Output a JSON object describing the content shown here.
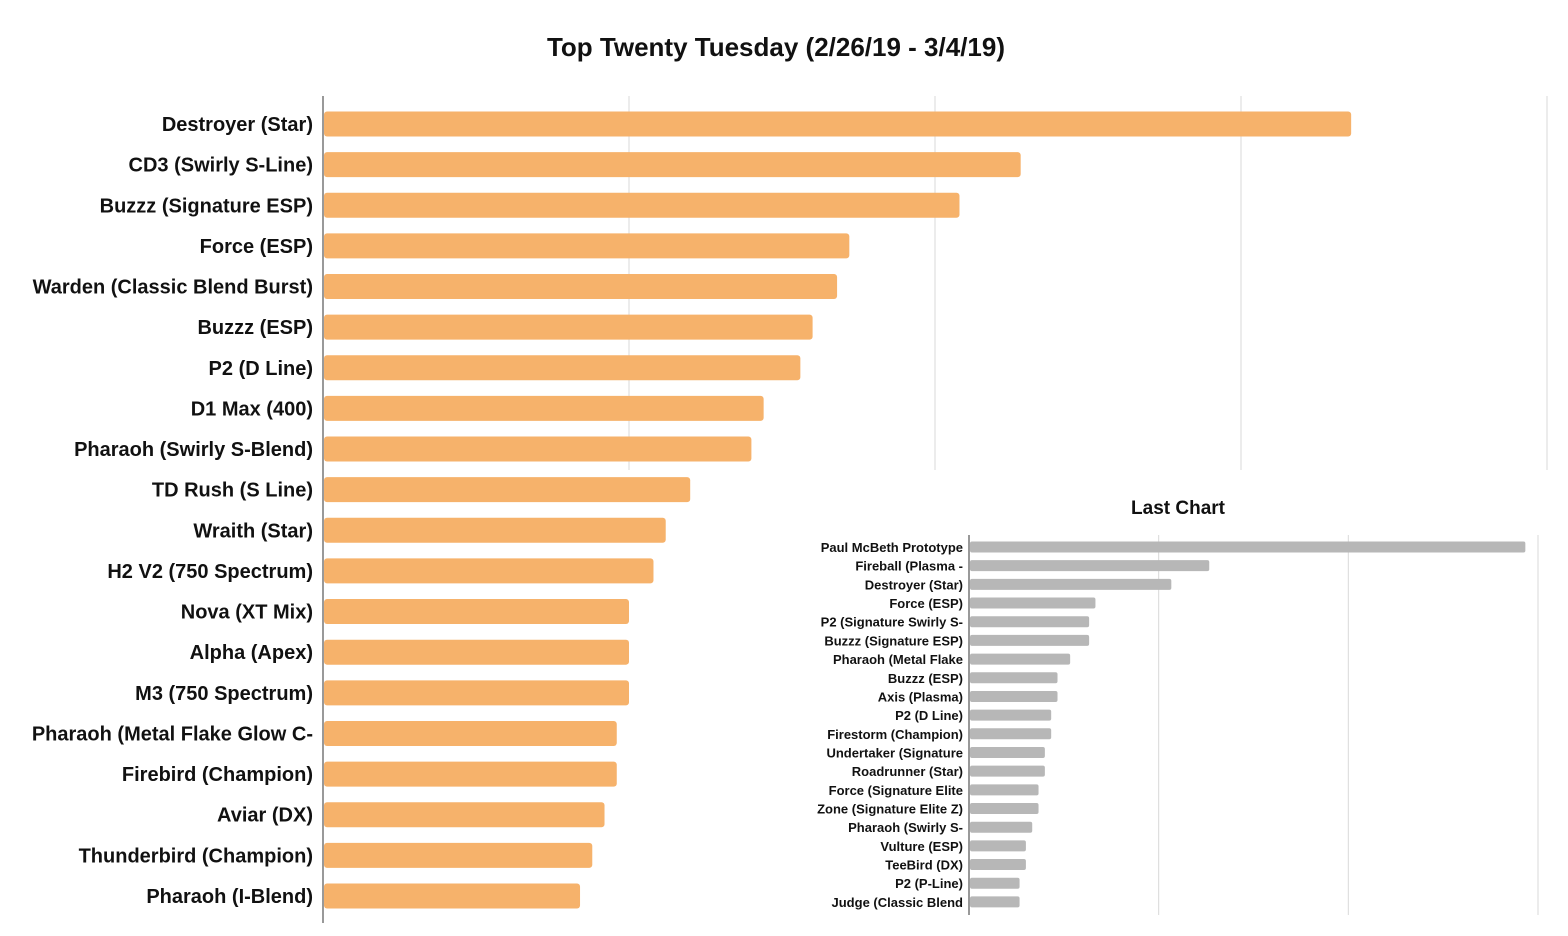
{
  "chart_data": [
    {
      "type": "bar",
      "orientation": "horizontal",
      "title": "Top Twenty Tuesday (2/26/19 - 3/4/19)",
      "categories": [
        "Destroyer (Star)",
        "CD3 (Swirly S-Line)",
        "Buzzz (Signature ESP)",
        "Force (ESP)",
        "Warden (Classic Blend Burst)",
        "Buzzz (ESP)",
        "P2 (D Line)",
        "D1 Max (400)",
        "Pharaoh (Swirly S-Blend)",
        "TD Rush (S Line)",
        "Wraith (Star)",
        "H2 V2 (750 Spectrum)",
        "Nova (XT Mix)",
        "Alpha (Apex)",
        "M3 (750 Spectrum)",
        "Pharaoh (Metal Flake Glow C-",
        "Firebird (Champion)",
        "Aviar (DX)",
        "Thunderbird (Champion)",
        "Pharaoh (I-Blend)"
      ],
      "values": [
        84,
        57,
        52,
        43,
        42,
        40,
        39,
        36,
        35,
        30,
        28,
        27,
        25,
        25,
        25,
        24,
        24,
        23,
        22,
        21
      ],
      "xlim": [
        0,
        100
      ],
      "grid": true,
      "tick_labels_shown": false,
      "bar_color": "#F6B26B",
      "grid_color": "#D9D9D9"
    },
    {
      "type": "bar",
      "orientation": "horizontal",
      "title": "Last Chart",
      "categories": [
        "Paul McBeth Prototype",
        "Fireball (Plasma -",
        "Destroyer (Star)",
        "Force (ESP)",
        "P2 (Signature Swirly S-",
        "Buzzz (Signature ESP)",
        "Pharaoh (Metal Flake",
        "Buzzz (ESP)",
        "Axis (Plasma)",
        "P2 (D Line)",
        "Firestorm (Champion)",
        "Undertaker (Signature",
        "Roadrunner (Star)",
        "Force (Signature Elite",
        "Zone (Signature Elite Z)",
        "Pharaoh (Swirly S-",
        "Vulture (ESP)",
        "TeeBird (DX)",
        "P2 (P-Line)",
        "Judge (Classic Blend"
      ],
      "values": [
        88,
        38,
        32,
        20,
        19,
        19,
        16,
        14,
        14,
        13,
        13,
        12,
        12,
        11,
        11,
        10,
        9,
        9,
        8,
        8
      ],
      "xlim": [
        0,
        90
      ],
      "grid": true,
      "tick_labels_shown": false,
      "bar_color": "#B7B7B7",
      "grid_color": "#D9D9D9"
    }
  ]
}
